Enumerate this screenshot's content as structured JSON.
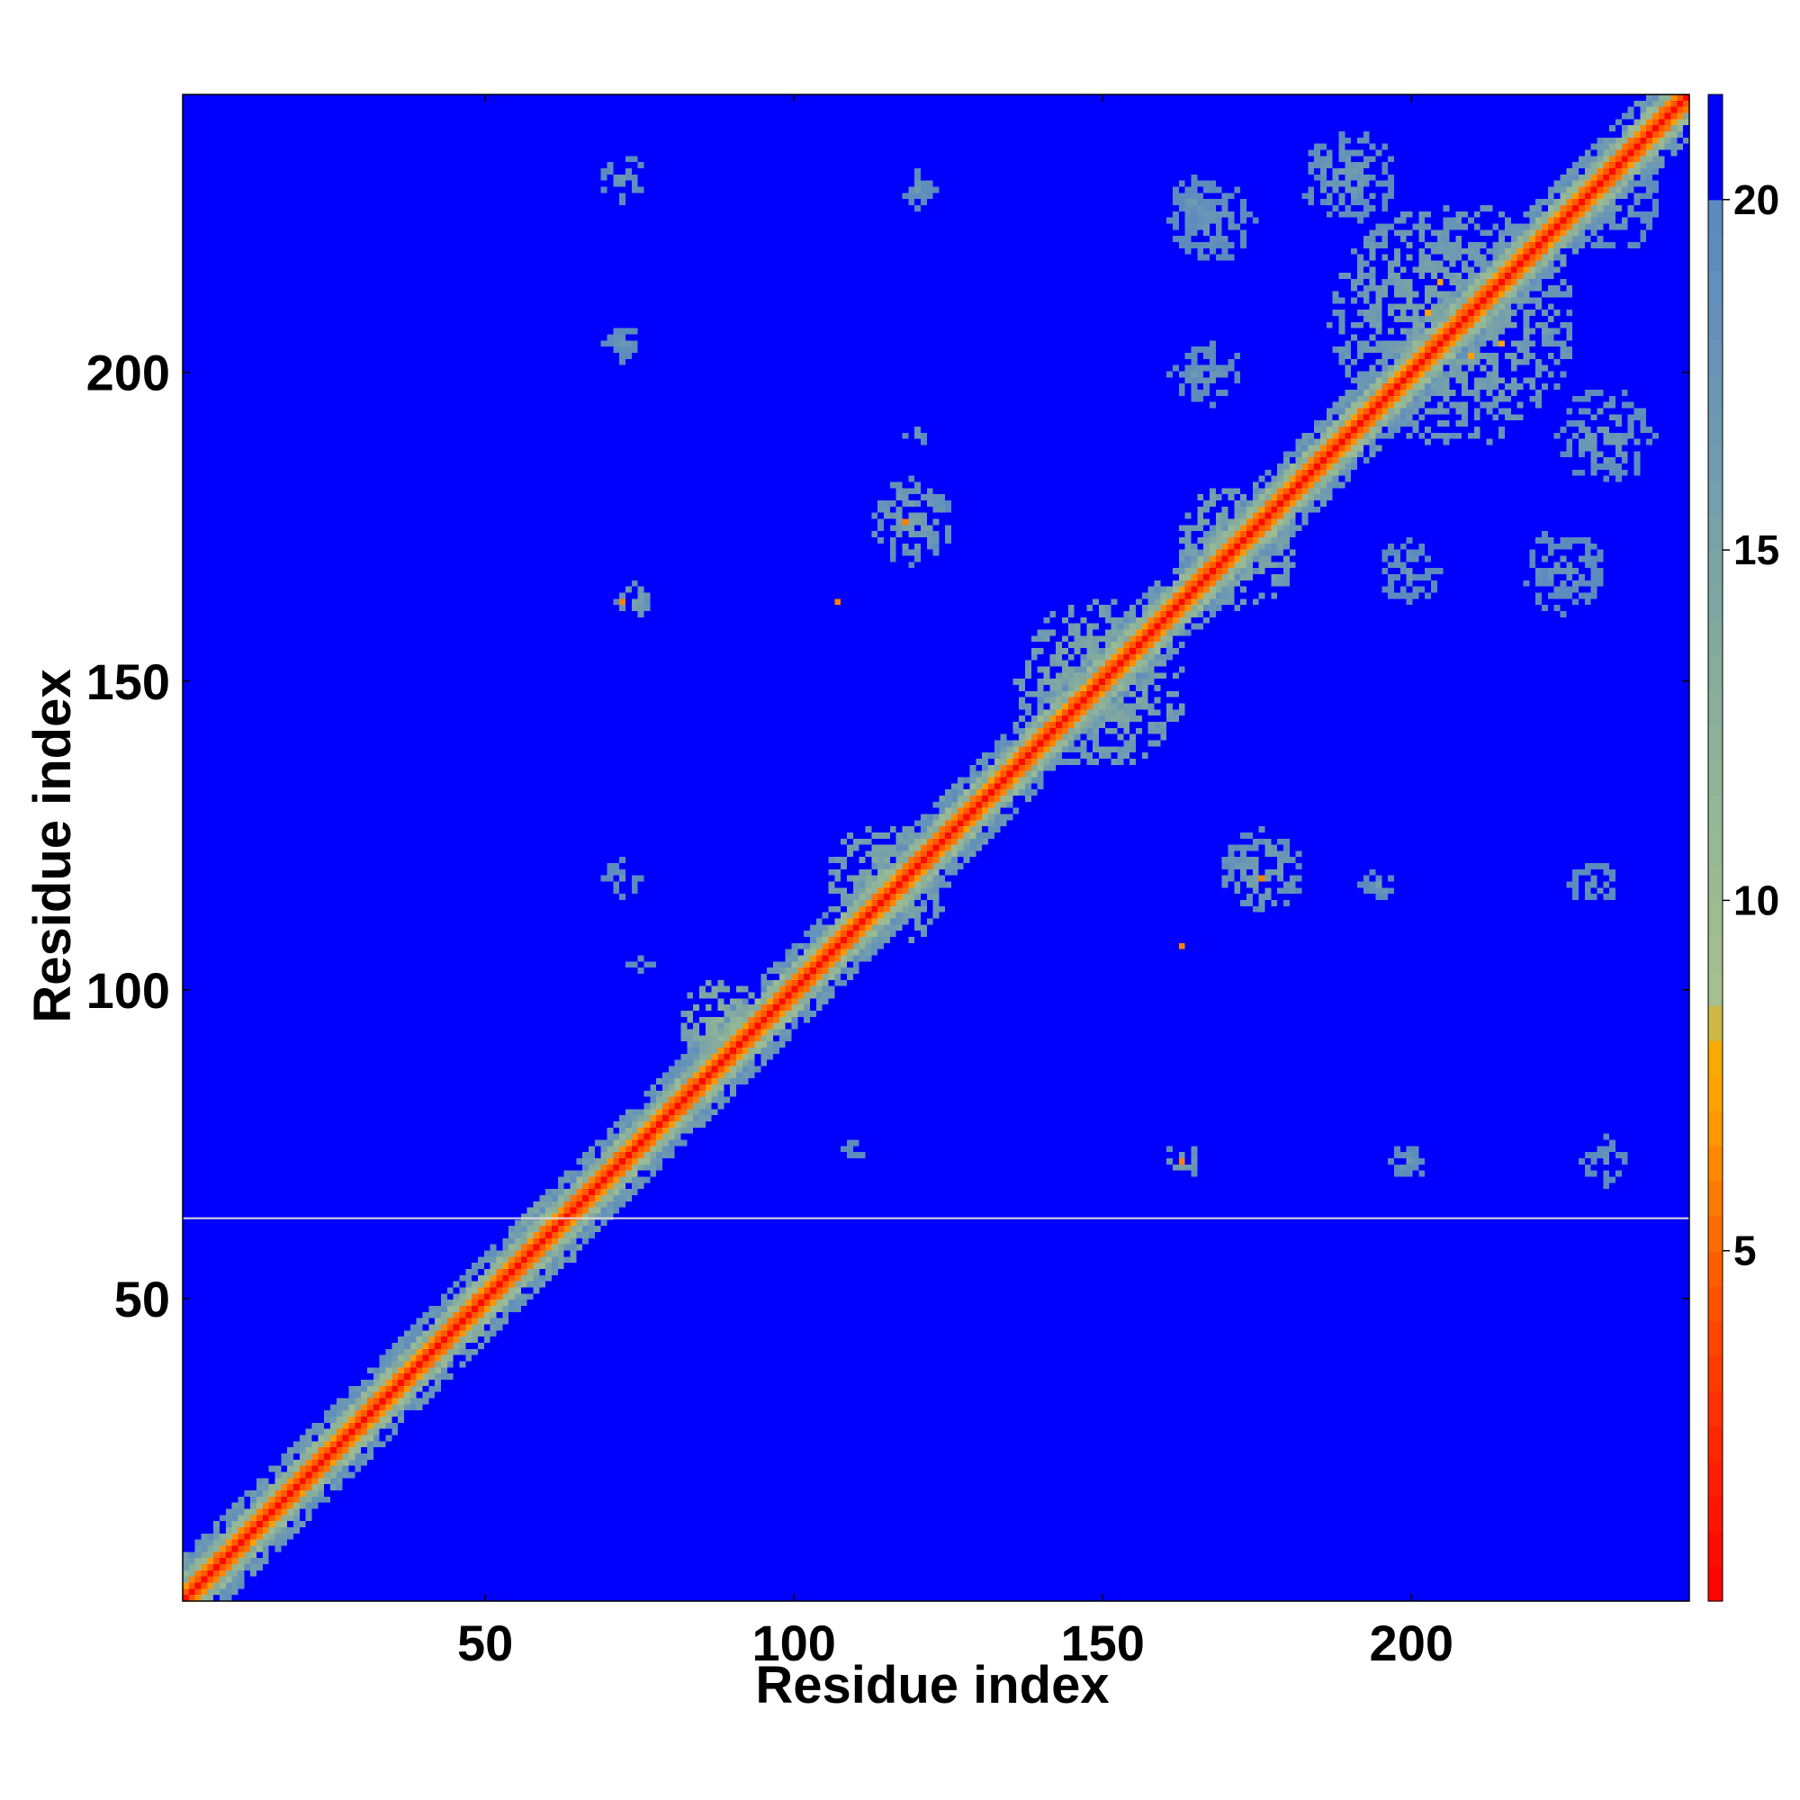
{
  "chart_data": {
    "type": "heatmap",
    "title": "",
    "xlabel": "Residue index",
    "ylabel": "Residue index",
    "xlim": [
      1,
      245
    ],
    "ylim": [
      1,
      245
    ],
    "x_ticks": [
      50,
      100,
      150,
      200
    ],
    "y_ticks": [
      50,
      100,
      150,
      200
    ],
    "colorbar": {
      "range": [
        0,
        21.5
      ],
      "ticks": [
        5,
        10,
        15,
        20
      ],
      "stops": [
        {
          "v": 0,
          "color": "#ff0000"
        },
        {
          "v": 2,
          "color": "#ff2200"
        },
        {
          "v": 4,
          "color": "#ff4a00"
        },
        {
          "v": 6,
          "color": "#ff8000"
        },
        {
          "v": 7,
          "color": "#ffa000"
        },
        {
          "v": 8.2,
          "color": "#f2b000"
        },
        {
          "v": 8.3,
          "color": "#a8c08c"
        },
        {
          "v": 11,
          "color": "#96b896"
        },
        {
          "v": 14,
          "color": "#80a8a0"
        },
        {
          "v": 17,
          "color": "#6c98b4"
        },
        {
          "v": 20,
          "color": "#5a88c0"
        },
        {
          "v": 20.1,
          "color": "#0000ff"
        },
        {
          "v": 21.5,
          "color": "#0000ff"
        }
      ]
    },
    "background_value": 21,
    "diagonal": {
      "core_value": 0.5,
      "inner_value": 5.5,
      "outer_value": 12,
      "edge_value": 18
    },
    "blobs": [
      {
        "x": 46,
        "y": 46,
        "r": 4,
        "value": 10
      },
      {
        "x": 60,
        "y": 60,
        "r": 6,
        "value": 11
      },
      {
        "x": 88,
        "y": 95,
        "r": 7,
        "value": 11
      },
      {
        "x": 115,
        "y": 117,
        "r": 10,
        "value": 12
      },
      {
        "x": 150,
        "y": 150,
        "r": 14,
        "value": 12
      },
      {
        "x": 172,
        "y": 172,
        "r": 10,
        "value": 12
      },
      {
        "x": 207,
        "y": 208,
        "r": 20,
        "value": 13
      },
      {
        "x": 119,
        "y": 176,
        "r": 7,
        "value": 14
      },
      {
        "x": 176,
        "y": 119,
        "r": 7,
        "value": 14
      },
      {
        "x": 74,
        "y": 163,
        "r": 3,
        "value": 14
      },
      {
        "x": 163,
        "y": 72,
        "r": 3,
        "value": 14
      },
      {
        "x": 232,
        "y": 228,
        "r": 9,
        "value": 15
      },
      {
        "x": 232,
        "y": 190,
        "r": 8,
        "value": 15
      },
      {
        "x": 190,
        "y": 232,
        "r": 8,
        "value": 15
      },
      {
        "x": 225,
        "y": 168,
        "r": 7,
        "value": 16
      },
      {
        "x": 168,
        "y": 225,
        "r": 7,
        "value": 16
      },
      {
        "x": 200,
        "y": 168,
        "r": 5,
        "value": 16
      },
      {
        "x": 168,
        "y": 200,
        "r": 5,
        "value": 16
      },
      {
        "x": 200,
        "y": 72,
        "r": 3,
        "value": 16
      },
      {
        "x": 232,
        "y": 72,
        "r": 4,
        "value": 16
      },
      {
        "x": 72,
        "y": 232,
        "r": 4,
        "value": 16
      },
      {
        "x": 72,
        "y": 205,
        "r": 3,
        "value": 16
      },
      {
        "x": 120,
        "y": 230,
        "r": 3,
        "value": 16
      },
      {
        "x": 120,
        "y": 190,
        "r": 2,
        "value": 16
      },
      {
        "x": 165,
        "y": 228,
        "r": 4,
        "value": 16
      },
      {
        "x": 165,
        "y": 200,
        "r": 4,
        "value": 16
      },
      {
        "x": 72,
        "y": 118,
        "r": 3,
        "value": 16
      },
      {
        "x": 75,
        "y": 104,
        "r": 2,
        "value": 16
      },
      {
        "x": 110,
        "y": 74,
        "r": 2,
        "value": 16
      },
      {
        "x": 195,
        "y": 117,
        "r": 3,
        "value": 16
      },
      {
        "x": 230,
        "y": 117,
        "r": 4,
        "value": 16
      }
    ],
    "hot_points": [
      {
        "x": 72,
        "y": 163,
        "value": 6
      },
      {
        "x": 107,
        "y": 163,
        "value": 6
      },
      {
        "x": 163,
        "y": 72,
        "value": 6
      },
      {
        "x": 163,
        "y": 107,
        "value": 6
      },
      {
        "x": 118,
        "y": 176,
        "value": 6
      },
      {
        "x": 176,
        "y": 118,
        "value": 6
      },
      {
        "x": 205,
        "y": 215,
        "value": 7
      },
      {
        "x": 215,
        "y": 205,
        "value": 7
      },
      {
        "x": 210,
        "y": 203,
        "value": 7
      },
      {
        "x": 203,
        "y": 210,
        "value": 7
      }
    ],
    "horizontal_line_y": 63
  }
}
